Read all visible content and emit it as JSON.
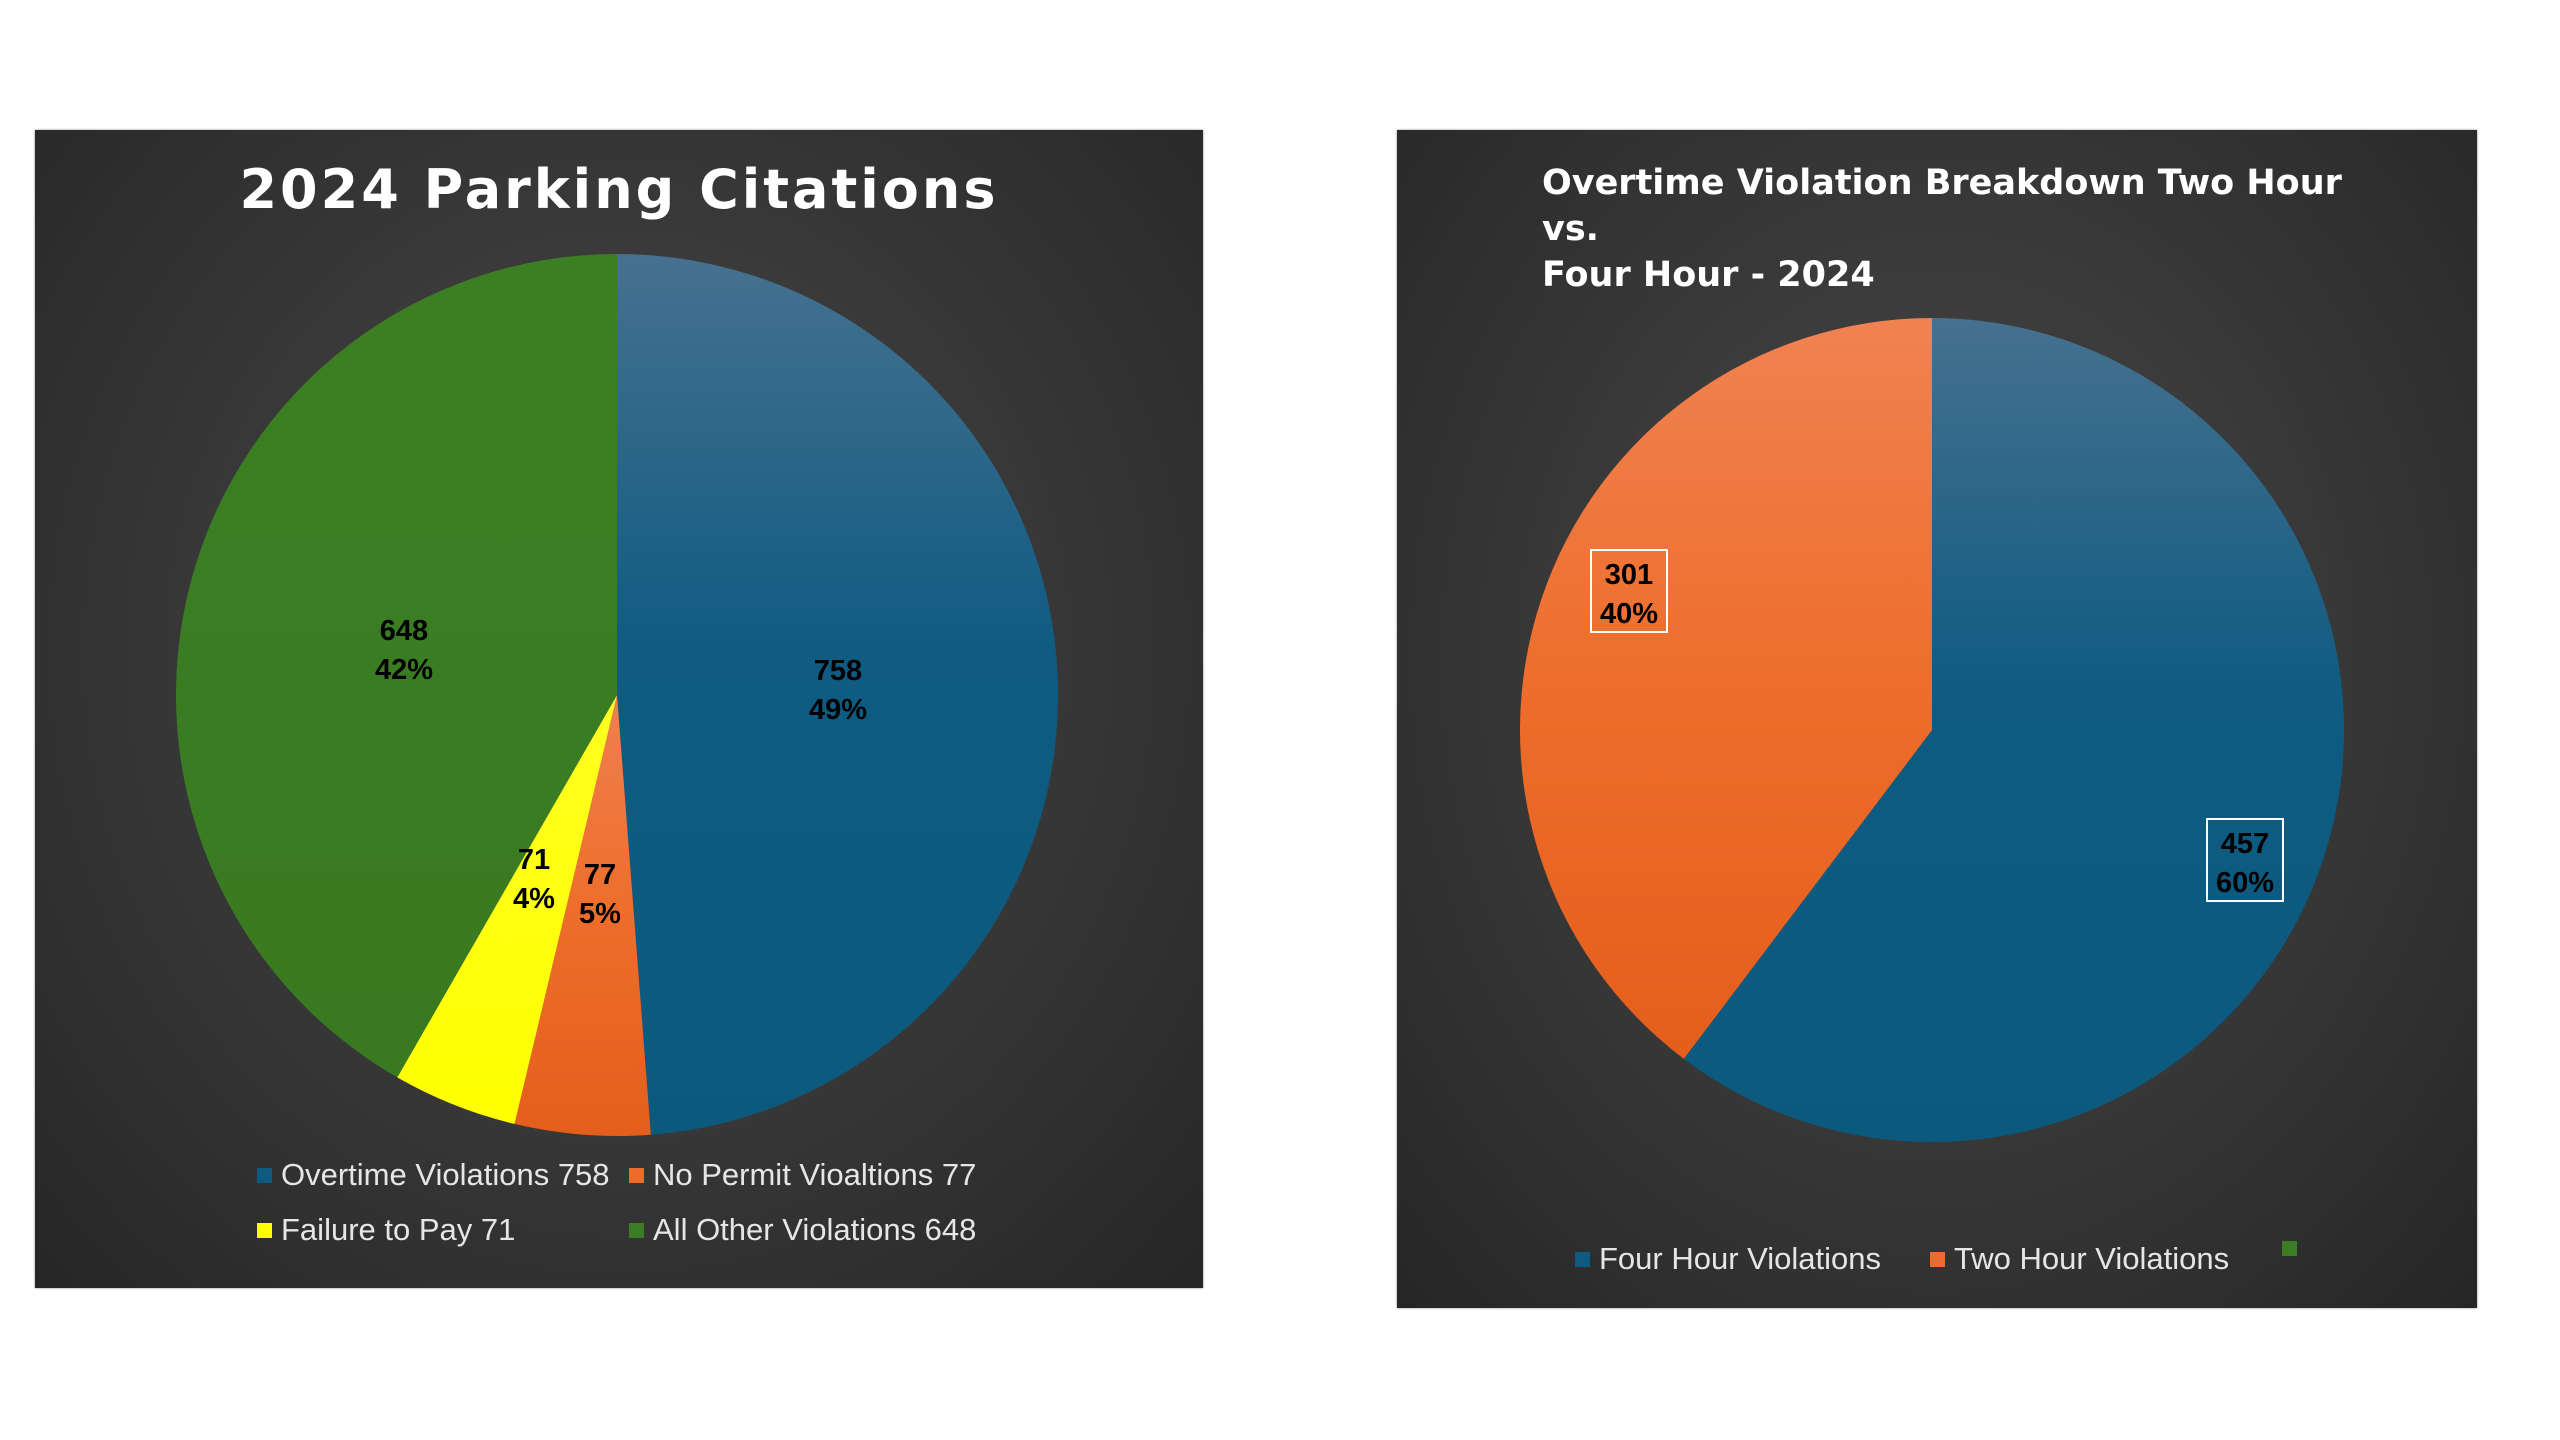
{
  "colors": {
    "blue": "#0e5a80",
    "orange": "#ec6b2d",
    "yellow": "#ffff00",
    "green": "#3b7d22"
  },
  "chart_data": [
    {
      "type": "pie",
      "title": "2024 Parking Citations",
      "slices": [
        {
          "name": "Overtime Violations",
          "value": 758,
          "label_value": "758",
          "label_pct": "49%",
          "legend": "Overtime Violations 758",
          "color": "#0e5a80"
        },
        {
          "name": "No Permit Vioaltions",
          "value": 77,
          "label_value": "77",
          "label_pct": "5%",
          "legend": "No Permit Vioaltions 77",
          "color": "#ec6b2d"
        },
        {
          "name": "Failure to Pay",
          "value": 71,
          "label_value": "71",
          "label_pct": "4%",
          "legend": "Failure to Pay 71",
          "color": "#ffff00"
        },
        {
          "name": "All Other Violations",
          "value": 648,
          "label_value": "648",
          "label_pct": "42%",
          "legend": "All Other Violations 648",
          "color": "#3b7d22"
        }
      ],
      "legend_position": "bottom"
    },
    {
      "type": "pie",
      "title_line1": "Overtime Violation Breakdown Two Hour vs.",
      "title_line2": "Four Hour  - 2024",
      "slices": [
        {
          "name": "Four Hour Violations",
          "value": 457,
          "label_value": "457",
          "label_pct": "60%",
          "legend": "Four Hour Violations",
          "color": "#0e5a80"
        },
        {
          "name": "Two Hour Violations",
          "value": 301,
          "label_value": "301",
          "label_pct": "40%",
          "legend": "Two Hour Violations",
          "color": "#ec6b2d"
        }
      ],
      "extra_legend_color": "#3b7d22",
      "legend_position": "bottom"
    }
  ]
}
